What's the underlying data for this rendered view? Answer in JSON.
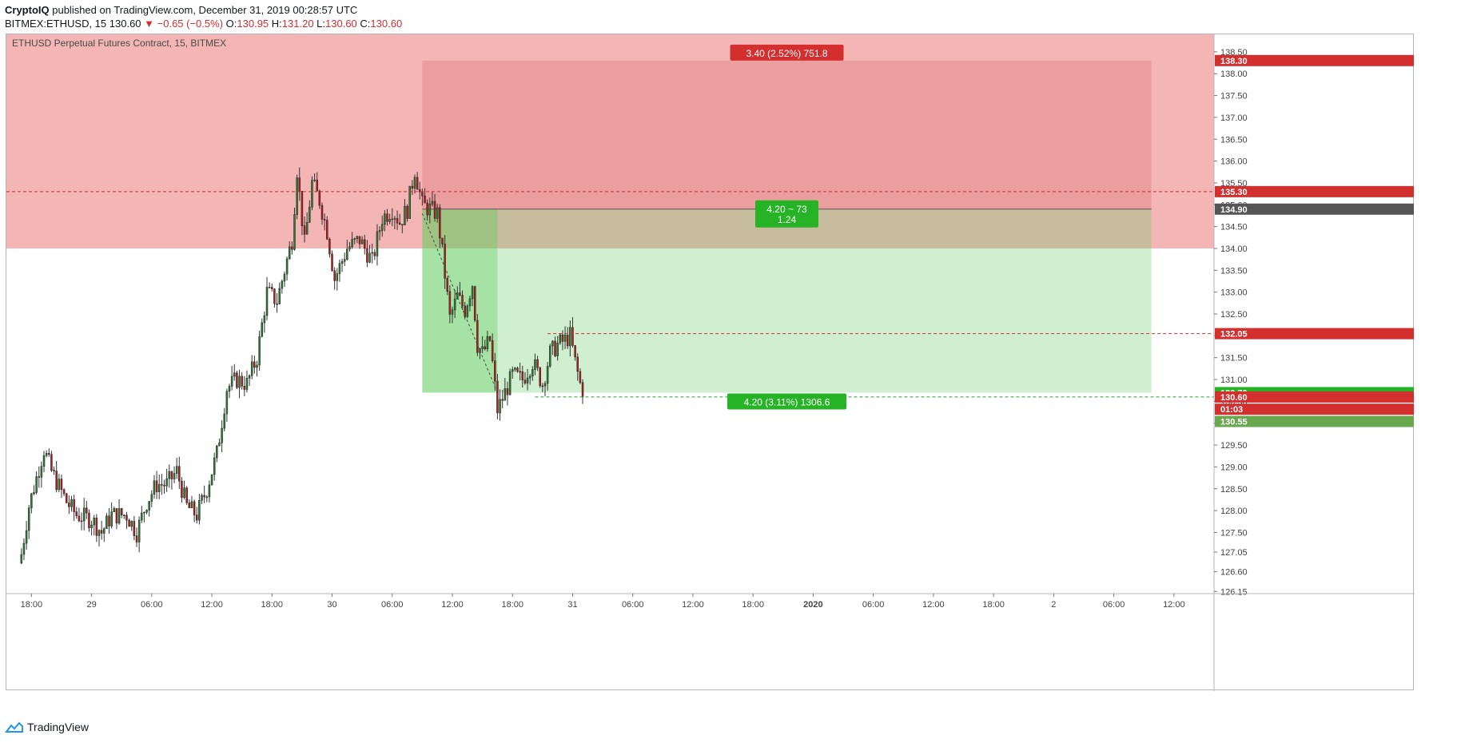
{
  "header": {
    "author": "CryptoIQ",
    "published": " published on TradingView.com, December 31, 2019 00:28:57 UTC",
    "symbol": "BITMEX:ETHUSD, 15",
    "last": "130.60",
    "change": "▼ −0.65 (−0.5%)",
    "o_label": "O:",
    "o_val": "130.95",
    "h_label": "H:",
    "h_val": "131.20",
    "l_label": "L:",
    "l_val": "130.60",
    "c_label": "C:",
    "c_val": "130.60"
  },
  "footer": {
    "brand": "TradingView"
  },
  "colors": {
    "up": "#2e7d32",
    "down": "#b71c1c",
    "stop_zone": "#f4b5b5",
    "stop_box": "#e79a9a",
    "target_box": "#cdeccc",
    "target_dark": "#a6e3a1",
    "label_red": "#d32f2f",
    "label_green": "#26b326",
    "axis_grey": "#555555"
  },
  "chart_data": {
    "type": "candlestick",
    "title": "ETHUSD Perpetual Futures Contract, 15, BITMEX",
    "ylim": [
      126.1,
      138.9
    ],
    "y_ticks": [
      "126.15",
      "126.60",
      "127.05",
      "127.50",
      "128.00",
      "128.50",
      "129.00",
      "129.50",
      "130.00",
      "130.50",
      "131.00",
      "131.50",
      "132.00",
      "132.50",
      "133.00",
      "133.50",
      "134.00",
      "134.50",
      "135.00",
      "135.50",
      "136.00",
      "136.50",
      "137.00",
      "137.50",
      "138.00",
      "138.50"
    ],
    "x_ticks": [
      {
        "label": "18:00",
        "t": 4
      },
      {
        "label": "29",
        "t": 28
      },
      {
        "label": "06:00",
        "t": 52
      },
      {
        "label": "12:00",
        "t": 76
      },
      {
        "label": "18:00",
        "t": 100
      },
      {
        "label": "30",
        "t": 124
      },
      {
        "label": "06:00",
        "t": 148
      },
      {
        "label": "12:00",
        "t": 172
      },
      {
        "label": "18:00",
        "t": 196
      },
      {
        "label": "31",
        "t": 220
      },
      {
        "label": "06:00",
        "t": 244
      },
      {
        "label": "12:00",
        "t": 268
      },
      {
        "label": "18:00",
        "t": 292
      },
      {
        "label": "2020",
        "t": 316,
        "bold": true
      },
      {
        "label": "06:00",
        "t": 340
      },
      {
        "label": "12:00",
        "t": 364
      },
      {
        "label": "18:00",
        "t": 388
      },
      {
        "label": "2",
        "t": 412
      },
      {
        "label": "06:00",
        "t": 436
      },
      {
        "label": "12:00",
        "t": 460
      }
    ],
    "x_range": [
      -6,
      476
    ],
    "close_anchors": [
      [
        0,
        127.0
      ],
      [
        3,
        128.1
      ],
      [
        9,
        129.4
      ],
      [
        12,
        128.9
      ],
      [
        18,
        128.2
      ],
      [
        22,
        127.9
      ],
      [
        28,
        127.8
      ],
      [
        32,
        127.5
      ],
      [
        36,
        127.9
      ],
      [
        42,
        127.9
      ],
      [
        46,
        127.5
      ],
      [
        50,
        128.2
      ],
      [
        54,
        128.6
      ],
      [
        58,
        128.6
      ],
      [
        62,
        128.9
      ],
      [
        66,
        128.1
      ],
      [
        70,
        127.9
      ],
      [
        74,
        128.5
      ],
      [
        78,
        129.3
      ],
      [
        82,
        130.8
      ],
      [
        86,
        131.0
      ],
      [
        90,
        130.9
      ],
      [
        94,
        131.5
      ],
      [
        98,
        133.0
      ],
      [
        102,
        132.8
      ],
      [
        105,
        133.5
      ],
      [
        108,
        134.2
      ],
      [
        110,
        135.8
      ],
      [
        113,
        134.1
      ],
      [
        116,
        135.5
      ],
      [
        119,
        135.1
      ],
      [
        122,
        134.4
      ],
      [
        125,
        133.3
      ],
      [
        130,
        134.0
      ],
      [
        135,
        134.2
      ],
      [
        140,
        133.7
      ],
      [
        144,
        134.7
      ],
      [
        148,
        134.9
      ],
      [
        151,
        134.6
      ],
      [
        154,
        134.9
      ],
      [
        157,
        135.8
      ],
      [
        160,
        135.0
      ],
      [
        163,
        134.9
      ],
      [
        166,
        134.8
      ],
      [
        168,
        133.9
      ],
      [
        171,
        132.4
      ],
      [
        174,
        132.9
      ],
      [
        177,
        132.6
      ],
      [
        180,
        133.2
      ],
      [
        182,
        131.8
      ],
      [
        184,
        131.6
      ],
      [
        187,
        131.9
      ],
      [
        190,
        130.3
      ],
      [
        193,
        130.7
      ],
      [
        196,
        131.1
      ],
      [
        200,
        131.0
      ],
      [
        204,
        131.4
      ],
      [
        208,
        130.9
      ],
      [
        211,
        131.6
      ],
      [
        214,
        131.8
      ],
      [
        217,
        131.9
      ],
      [
        219,
        132.0
      ],
      [
        221,
        131.4
      ],
      [
        223,
        130.9
      ],
      [
        224,
        130.6
      ]
    ],
    "last_price": 130.6,
    "position": {
      "type": "short",
      "t_start": 160,
      "t_end": 451,
      "entry": 134.9,
      "stop": 138.3,
      "target": 130.7,
      "stop_label": "3.40 (2.52%) 751.8",
      "target_label": "4.20 (3.11%) 1306.6",
      "ratio_line1": "4.20 ~ 73",
      "ratio_line2": "1.24"
    },
    "resistance_zone": {
      "from": 134.0,
      "to": 138.9
    },
    "horizontal_lines": [
      {
        "price": 135.3,
        "color": "#d32f2f",
        "t_start": -6
      },
      {
        "price": 132.05,
        "color": "#d32f2f",
        "t_start": 210
      },
      {
        "price": 130.6,
        "color": "#2e9e2e",
        "t_start": 205
      }
    ],
    "price_labels": [
      {
        "text": "138.30",
        "price": 138.3,
        "bg": "#d32f2f",
        "fg": "#ffffff"
      },
      {
        "text": "135.30",
        "price": 135.3,
        "bg": "#d32f2f",
        "fg": "#ffffff"
      },
      {
        "text": "134.90",
        "price": 134.9,
        "bg": "#555555",
        "fg": "#ffffff"
      },
      {
        "text": "132.05",
        "price": 132.05,
        "bg": "#d32f2f",
        "fg": "#ffffff"
      },
      {
        "text": "130.70",
        "price": 130.7,
        "bg": "#26b326",
        "fg": "#ffffff"
      },
      {
        "text": "130.60",
        "price": 130.6,
        "bg": "#d32f2f",
        "fg": "#ffffff"
      },
      {
        "text": "01:03",
        "price": 130.32,
        "bg": "#d32f2f",
        "fg": "#ffffff"
      },
      {
        "text": "130.55",
        "price": 130.04,
        "bg": "#6aa84f",
        "fg": "#ffffff"
      }
    ]
  }
}
